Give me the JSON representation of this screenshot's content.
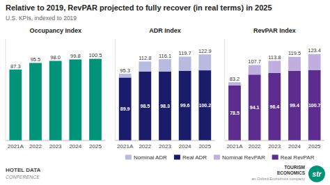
{
  "title": "Relative to 2019, RevPAR projected to fully recover (in real terms) in 2025",
  "subtitle": "U.S. KPIs, indexed to 2019",
  "annotations": [
    {
      "text": "HOTEL DATA"
    },
    {
      "text": "CONFERENCE"
    },
    {
      "text": "TOURISM"
    },
    {
      "text": "ECONOMICS"
    },
    {
      "text": "an Oxford Economics company"
    },
    {
      "text": "str",
      "color": "#00937a"
    }
  ],
  "chart_data": [
    {
      "type": "bar",
      "title": "Occupancy Index",
      "categories": [
        "2021A",
        "2022",
        "2023",
        "2024",
        "2025"
      ],
      "values": [
        87.3,
        95.5,
        98.0,
        99.8,
        100.5
      ],
      "value_labels": [
        "87.3",
        "95.5",
        "98.0",
        "99.8",
        "100.5"
      ],
      "color": "#00937a",
      "ylim": [
        0,
        125
      ],
      "data_labels": true,
      "tick_labels": "x",
      "grid": false
    },
    {
      "type": "bar",
      "title": "ADR Index",
      "categories": [
        "2021A",
        "2022",
        "2023",
        "2024",
        "2025"
      ],
      "stacked": true,
      "series": [
        {
          "name": "Real ADR",
          "color": "#1b1b6b",
          "values": [
            89.9,
            98.5,
            98.3,
            99.6,
            100.2
          ],
          "data_labels": true
        },
        {
          "name": "Nominal ADR",
          "color": "#b8bbdf",
          "values": [
            5.4,
            14.3,
            17.8,
            20.1,
            22.7
          ]
        }
      ],
      "totals": [
        95.3,
        112.8,
        116.1,
        119.7,
        122.9
      ],
      "ylim": [
        0,
        145
      ],
      "tick_labels": "x",
      "grid": false
    },
    {
      "type": "bar",
      "title": "RevPAR Index",
      "categories": [
        "2021A",
        "2022",
        "2023",
        "2024",
        "2025"
      ],
      "stacked": true,
      "series": [
        {
          "name": "Real RevPAR",
          "color": "#5c2d8e",
          "values": [
            78.5,
            94.1,
            96.4,
            99.4,
            100.7
          ],
          "data_labels": true
        },
        {
          "name": "Nominal RevPAR",
          "color": "#c0aede",
          "values": [
            4.7,
            13.6,
            17.4,
            20.1,
            22.7
          ]
        }
      ],
      "totals": [
        83.2,
        107.7,
        113.8,
        119.5,
        123.4
      ],
      "ylim": [
        0,
        145
      ],
      "tick_labels": "x",
      "grid": false
    }
  ]
}
